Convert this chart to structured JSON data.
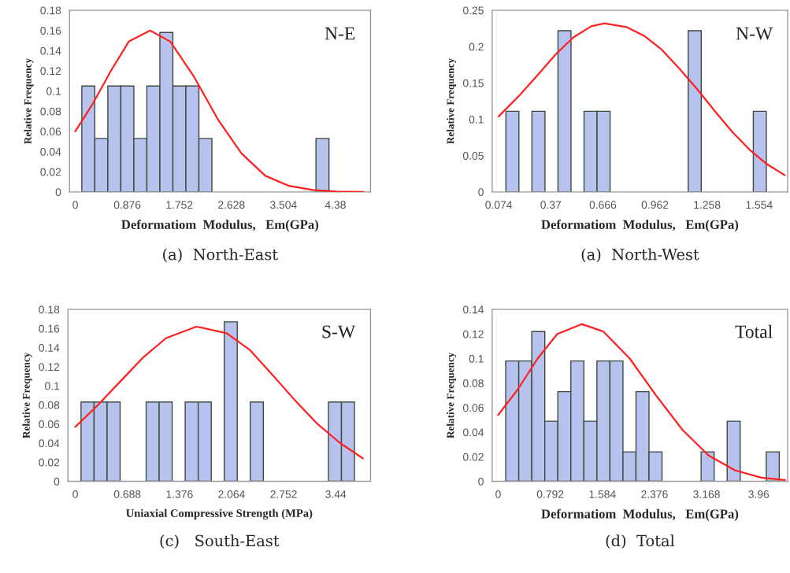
{
  "chart_data": [
    {
      "type": "histogram",
      "title": "N-E",
      "xlabel": "Deformatiom  Modulus,   Em(GPa)",
      "ylabel": "Relative Frequency",
      "annotations": [
        "(a)  North-East"
      ],
      "series": [
        {
          "type": "histogram",
          "color": "#b8c2ee",
          "bins": [
            0.11,
            0.329,
            0.548,
            0.767,
            0.986,
            1.205,
            1.424,
            1.643,
            1.862,
            2.081,
            2.3,
            2.519,
            2.738,
            2.957,
            3.176,
            3.395,
            3.614,
            3.833,
            4.052,
            4.271
          ],
          "values": [
            0.105,
            0.053,
            0.105,
            0.105,
            0.053,
            0.105,
            0.158,
            0.105,
            0.105,
            0.053,
            0,
            0,
            0,
            0,
            0,
            0,
            0,
            0,
            0.053
          ]
        },
        {
          "type": "line",
          "color": "#ff2020",
          "x": [
            0,
            0.3,
            0.6,
            0.9,
            1.26,
            1.6,
            2.0,
            2.4,
            2.8,
            3.2,
            3.6,
            4.0,
            4.4,
            4.85
          ],
          "values": [
            0.06,
            0.088,
            0.12,
            0.149,
            0.16,
            0.149,
            0.114,
            0.072,
            0.038,
            0.016,
            0.006,
            0.002,
            0.0005,
            0
          ]
        }
      ],
      "xlim": [
        -0.097,
        4.97
      ],
      "ylim": [
        0,
        0.18
      ],
      "xticks": [
        0,
        0.876,
        1.752,
        2.628,
        3.504,
        4.38
      ],
      "yticks": [
        0,
        0.02,
        0.04,
        0.06,
        0.08,
        0.1,
        0.12,
        0.14,
        0.16,
        0.18
      ],
      "grid": false,
      "legend": false
    },
    {
      "type": "histogram",
      "title": "N-W",
      "xlabel": "Deformatiom  Modulus,   Em(GPa)",
      "ylabel": "Relative Frequency",
      "annotations": [
        "(a)  North-West"
      ],
      "series": [
        {
          "type": "histogram",
          "color": "#b8c2ee",
          "bins": [
            0.115,
            0.189,
            0.263,
            0.337,
            0.411,
            0.485,
            0.559,
            0.633,
            0.707,
            0.781,
            0.855,
            0.929,
            1.003,
            1.077,
            1.151,
            1.225,
            1.299,
            1.373,
            1.447,
            1.521,
            1.595
          ],
          "values": [
            0.111,
            0,
            0.111,
            0,
            0.222,
            0,
            0.111,
            0.111,
            0,
            0,
            0,
            0,
            0,
            0,
            0.222,
            0,
            0,
            0,
            0,
            0.111
          ]
        },
        {
          "type": "line",
          "color": "#ff2020",
          "x": [
            0.074,
            0.2,
            0.3,
            0.4,
            0.5,
            0.6,
            0.673,
            0.8,
            0.9,
            1.0,
            1.1,
            1.2,
            1.3,
            1.4,
            1.5,
            1.6,
            1.7
          ],
          "values": [
            0.104,
            0.135,
            0.162,
            0.19,
            0.213,
            0.228,
            0.232,
            0.227,
            0.215,
            0.196,
            0.17,
            0.142,
            0.112,
            0.083,
            0.058,
            0.038,
            0.023
          ]
        }
      ],
      "xlim": [
        0.037,
        1.716
      ],
      "ylim": [
        0,
        0.25
      ],
      "xticks": [
        0.074,
        0.37,
        0.666,
        0.962,
        1.258,
        1.554
      ],
      "yticks": [
        0,
        0.05,
        0.1,
        0.15,
        0.2,
        0.25
      ],
      "grid": false,
      "legend": false
    },
    {
      "type": "histogram",
      "title": "S-W",
      "xlabel": "Uniaxial Compressive Strength (MPa)",
      "ylabel": "Relative Frequency",
      "annotations": [
        "(c)   South-East"
      ],
      "series": [
        {
          "type": "histogram",
          "color": "#b8c2ee",
          "bins": [
            0.076,
            0.248,
            0.42,
            0.592,
            0.764,
            0.936,
            1.108,
            1.28,
            1.452,
            1.624,
            1.796,
            1.968,
            2.14,
            2.312,
            2.484,
            2.656,
            2.828,
            3.0,
            3.172,
            3.344,
            3.516,
            3.688
          ],
          "values": [
            0.083,
            0.083,
            0.083,
            0,
            0,
            0.083,
            0.083,
            0,
            0.083,
            0.083,
            0,
            0.167,
            0,
            0.083,
            0,
            0,
            0,
            0,
            0,
            0.083,
            0.083
          ]
        },
        {
          "type": "line",
          "color": "#ff2020",
          "x": [
            0,
            0.3,
            0.6,
            0.9,
            1.2,
            1.6,
            2.0,
            2.3,
            2.6,
            2.9,
            3.2,
            3.5,
            3.8
          ],
          "values": [
            0.057,
            0.08,
            0.105,
            0.13,
            0.15,
            0.162,
            0.155,
            0.138,
            0.112,
            0.085,
            0.06,
            0.04,
            0.024
          ]
        }
      ],
      "xlim": [
        -0.097,
        3.9
      ],
      "ylim": [
        0,
        0.18
      ],
      "xticks": [
        0,
        0.688,
        1.376,
        2.064,
        2.752,
        3.44
      ],
      "yticks": [
        0,
        0.02,
        0.04,
        0.06,
        0.08,
        0.1,
        0.12,
        0.14,
        0.16,
        0.18
      ],
      "grid": false,
      "legend": false
    },
    {
      "type": "histogram",
      "title": "Total",
      "xlabel": "Deformatiom  Modulus,   Em(GPa)",
      "ylabel": "Relative Frequency",
      "annotations": [
        "(d)  Total"
      ],
      "series": [
        {
          "type": "histogram",
          "color": "#b8c2ee",
          "bins": [
            0.115,
            0.313,
            0.511,
            0.709,
            0.907,
            1.105,
            1.303,
            1.501,
            1.699,
            1.897,
            2.095,
            2.293,
            2.491,
            2.689,
            2.887,
            3.085,
            3.283,
            3.481,
            3.679,
            3.877,
            4.075,
            4.273
          ],
          "values": [
            0.098,
            0.098,
            0.122,
            0.049,
            0.073,
            0.098,
            0.049,
            0.098,
            0.098,
            0.024,
            0.073,
            0.024,
            0,
            0,
            0,
            0.024,
            0,
            0.049,
            0,
            0,
            0.024
          ]
        },
        {
          "type": "line",
          "color": "#ff2020",
          "x": [
            0,
            0.3,
            0.6,
            0.9,
            1.275,
            1.6,
            2.0,
            2.4,
            2.8,
            3.2,
            3.6,
            4.0,
            4.36
          ],
          "values": [
            0.054,
            0.075,
            0.1,
            0.12,
            0.128,
            0.122,
            0.1,
            0.07,
            0.042,
            0.021,
            0.009,
            0.003,
            0.001
          ]
        }
      ],
      "xlim": [
        -0.091,
        4.4
      ],
      "ylim": [
        0,
        0.14
      ],
      "xticks": [
        0,
        0.792,
        1.584,
        2.376,
        3.168,
        3.96
      ],
      "yticks": [
        0,
        0.02,
        0.04,
        0.06,
        0.08,
        0.1,
        0.12,
        0.14
      ],
      "grid": false,
      "legend": false
    }
  ]
}
